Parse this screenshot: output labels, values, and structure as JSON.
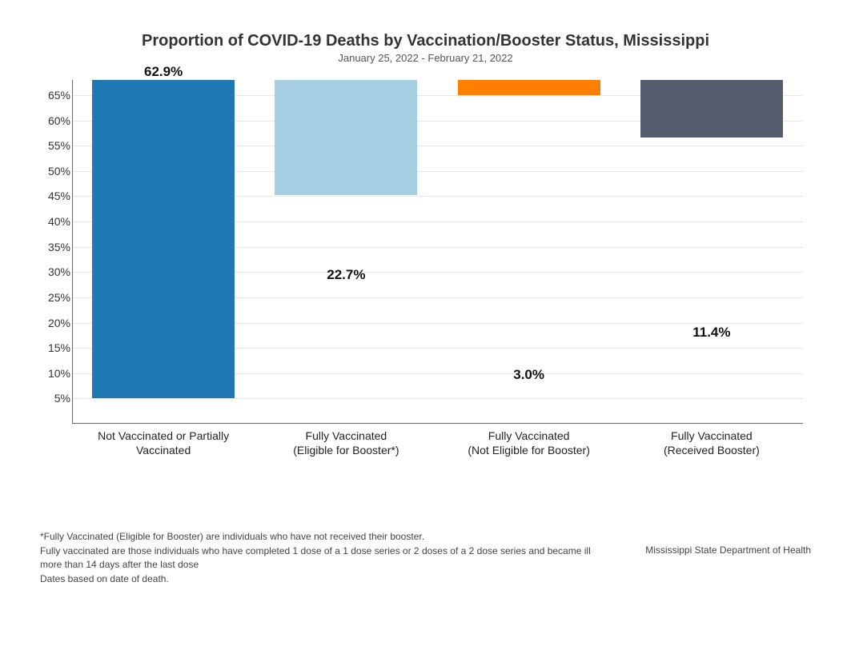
{
  "chart": {
    "type": "bar",
    "title": "Proportion of COVID-19 Deaths by Vaccination/Booster Status, Mississippi",
    "subtitle": "January 25, 2022 - February 21, 2022",
    "title_fontsize": 20,
    "subtitle_fontsize": 13,
    "background_color": "#ffffff",
    "grid_color": "#e6e6e6",
    "axis_color": "#666666",
    "y": {
      "min": 0,
      "max": 68,
      "ticks": [
        5,
        10,
        15,
        20,
        25,
        30,
        35,
        40,
        45,
        50,
        55,
        60,
        65
      ],
      "tick_labels": [
        "5%",
        "10%",
        "15%",
        "20%",
        "25%",
        "30%",
        "35%",
        "40%",
        "45%",
        "50%",
        "55%",
        "60%",
        "65%"
      ],
      "tick_fontsize": 14
    },
    "categories": [
      {
        "line1": "Not Vaccinated or Partially",
        "line2": "Vaccinated"
      },
      {
        "line1": "Fully Vaccinated",
        "line2": "(Eligible for Booster*)"
      },
      {
        "line1": "Fully Vaccinated",
        "line2": "(Not Eligible for Booster)"
      },
      {
        "line1": "Fully Vaccinated",
        "line2": "(Received Booster)"
      }
    ],
    "values": [
      62.9,
      22.7,
      3.0,
      11.4
    ],
    "value_labels": [
      "62.9%",
      "22.7%",
      "3.0%",
      "11.4%"
    ],
    "bar_colors": [
      "#1f78b4",
      "#a6cee3",
      "#ff7f00",
      "#555e6c"
    ],
    "bar_width": 0.78,
    "value_label_fontsize": 17,
    "xlabel_fontsize": 14
  },
  "footer": {
    "note1": "*Fully Vaccinated (Eligible for Booster) are individuals who have not received their booster.",
    "note2": "Fully vaccinated are those individuals who have completed 1 dose of a 1 dose series or 2 doses of a 2 dose series and became ill more than 14 days after the last dose",
    "note3": "Dates based on date of death.",
    "source": "Mississippi State Department of Health",
    "fontsize": 12
  }
}
